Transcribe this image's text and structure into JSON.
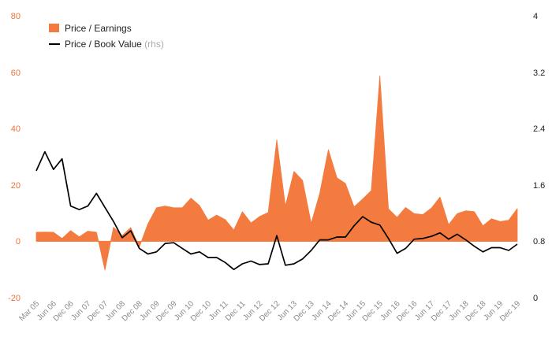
{
  "chart_data": {
    "type": "area",
    "colors": {
      "pe": "#f47b3f",
      "pb": "#000000",
      "left_ticks": "#e8743b"
    },
    "y_left": {
      "ylim": [
        -20,
        80
      ],
      "ticks": [
        "80",
        "60",
        "40",
        "20",
        "0",
        "-20"
      ]
    },
    "y_right": {
      "ylim": [
        0,
        4
      ],
      "ticks": [
        "4",
        "3.2",
        "2.4",
        "1.6",
        "0.8",
        "0"
      ]
    },
    "x_tick_labels": [
      "Mar 05",
      "Jun 06",
      "Dec 06",
      "Jun 07",
      "Dec 07",
      "Jun 08",
      "Dec 08",
      "Jun 09",
      "Dec 09",
      "Jun 10",
      "Dec 10",
      "Jun 11",
      "Dec 11",
      "Jun 12",
      "Dec 12",
      "Jun 13",
      "Dec 13",
      "Jun 14",
      "Dec 14",
      "Jun 15",
      "Dec 15",
      "Jun 16",
      "Dec 16",
      "Jun 17",
      "Dec 17",
      "Jun 18",
      "Dec 18",
      "Jun 19",
      "Dec 19"
    ],
    "legend": {
      "pe_label": "Price / Earnings",
      "pb_label": "Price / Book Value",
      "pb_suffix": "(rhs)",
      "position": "top-left"
    },
    "series": [
      {
        "name": "Price / Earnings",
        "axis": "left",
        "values": [
          3.2,
          3.3,
          3.2,
          1.0,
          3.8,
          1.6,
          3.6,
          3.2,
          -10.2,
          5.0,
          2.0,
          4.9,
          -2.0,
          6.2,
          11.9,
          12.5,
          11.9,
          11.9,
          15.3,
          12.7,
          7.5,
          9.3,
          7.7,
          4.0,
          10.5,
          6.5,
          8.8,
          10.2,
          36.0,
          12.5,
          24.8,
          21.6,
          6.4,
          17.0,
          32.5,
          22.5,
          20.5,
          12.2,
          15.0,
          18.0,
          58.7,
          11.5,
          8.5,
          12.0,
          9.8,
          9.5,
          11.8,
          15.7,
          5.9,
          9.8,
          10.8,
          10.5,
          5.5,
          8.0,
          7.0,
          7.5,
          11.6
        ]
      },
      {
        "name": "Price / Book Value",
        "axis": "right",
        "values": [
          1.8,
          2.07,
          1.82,
          1.97,
          1.3,
          1.25,
          1.3,
          1.48,
          1.28,
          1.08,
          0.85,
          0.95,
          0.7,
          0.62,
          0.65,
          0.77,
          0.78,
          0.7,
          0.62,
          0.65,
          0.57,
          0.57,
          0.5,
          0.4,
          0.48,
          0.52,
          0.47,
          0.48,
          0.88,
          0.46,
          0.48,
          0.55,
          0.67,
          0.82,
          0.82,
          0.86,
          0.86,
          1.02,
          1.15,
          1.07,
          1.03,
          0.84,
          0.63,
          0.7,
          0.83,
          0.84,
          0.87,
          0.92,
          0.83,
          0.9,
          0.82,
          0.73,
          0.65,
          0.71,
          0.71,
          0.67,
          0.76
        ]
      }
    ]
  }
}
